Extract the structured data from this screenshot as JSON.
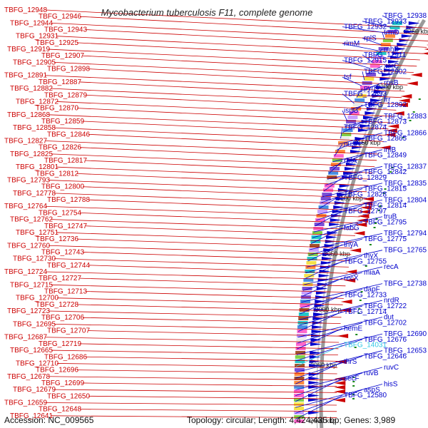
{
  "title": "Mycobacterium tuberculosis F11, complete genome",
  "footer": {
    "accession": "Accession: NC_009565",
    "summary": "Topology: circular; Length: 4,424,435 bp; Genes: 3,989"
  },
  "colors": {
    "minus_strand": "#cc0000",
    "plus_strand": "#0000cc",
    "highlight": "#33c8e6",
    "backbone": "#9a9a9a",
    "tick": "#1a8a1a"
  },
  "kbp_marks": [
    "3250 kbp",
    "3200 kbp",
    "3150 kbp",
    "3100 kbp",
    "3050 kbp",
    "3000 kbp",
    "2950 kbp",
    "2900 kbp"
  ],
  "left_labels": [
    "TBFG_12948",
    "TBFG_12946",
    "TBFG_12944",
    "TBFG_12943",
    "TBFG_12931",
    "TBFG_12925",
    "TBFG_12919",
    "TBFG_12907",
    "TBFG_12905",
    "TBFG_12898",
    "TBFG_12891",
    "TBFG_12887",
    "TBFG_12882",
    "TBFG_12879",
    "TBFG_12872",
    "TBFG_12870",
    "TBFG_12868",
    "TBFG_12859",
    "TBFG_12858",
    "TBFG_12846",
    "TBFG_12827",
    "TBFG_12826",
    "TBFG_12825",
    "TBFG_12817",
    "TBFG_12801",
    "TBFG_12812",
    "TBFG_12793",
    "TBFG_12800",
    "TBFG_12778",
    "TBFG_12788",
    "TBFG_12764",
    "TBFG_12754",
    "TBFG_12762",
    "TBFG_12747",
    "TBFG_12751",
    "TBFG_12736",
    "TBFG_12760",
    "TBFG_12743",
    "TBFG_12730",
    "TBFG_12744",
    "TBFG_12724",
    "TBFG_12727",
    "TBFG_12715",
    "TBFG_12713",
    "TBFG_12700",
    "TBFG_12728",
    "TBFG_12723",
    "TBFG_12706",
    "TBFG_12695",
    "TBFG_12707",
    "TBFG_12687",
    "TBFG_12719",
    "TBFG_12665",
    "TBFG_12686",
    "TBFG_12710",
    "TBFG_12696",
    "TBFG_12678",
    "TBFG_12699",
    "TBFG_12679",
    "TBFG_12650",
    "TBFG_12659",
    "TBFG_12648",
    "TBFG_12641"
  ],
  "right_labels": [
    "TBFG_12938",
    "TBFG_12933",
    "TBFG_12932",
    "trmD",
    "rplS",
    "rimM",
    "rnhB",
    "TBFG_12911",
    "TBFG_12915",
    "xerC",
    "TBFG_12902",
    "tsf",
    "rpsB",
    "pyrH",
    "TBFG_12893",
    "frr",
    "TBFG_12892",
    "ispG",
    "TBFG_12883",
    "TBFG_12873",
    "TBFG_12874",
    "TBFG_12866",
    "TBFG_12865",
    "nusA",
    "infB",
    "TBFG_12849",
    "rbfA",
    "TBFG_12837",
    "TBFG_12842",
    "TBFG_12829",
    "TBFG_12835",
    "TBFG_12815",
    "TBFG_12828",
    "TBFG_12804",
    "TBFG_12814",
    "TBFG_12797",
    "truB",
    "TBFG_12795",
    "fabG",
    "TBFG_12794",
    "TBFG_12775",
    "thyA",
    "TBFG_12765",
    "thyX",
    "TBFG_12755",
    "recA",
    "miaA",
    "recX",
    "TBFG_12738",
    "dapF",
    "TBFG_12733",
    "nrdR",
    "TBFG_12722",
    "TBFG_12714",
    "dut",
    "TBFG_12702",
    "hemE",
    "TBFG_12690",
    "TBFG_12676",
    "TBFG_14031",
    "TBFG_12653",
    "TBFG_12646",
    "thrS",
    "ruvC",
    "ruvB",
    "secF",
    "hisS",
    "aspS",
    "TBFG_12580"
  ],
  "highlighted_label": "TBFG_14031"
}
